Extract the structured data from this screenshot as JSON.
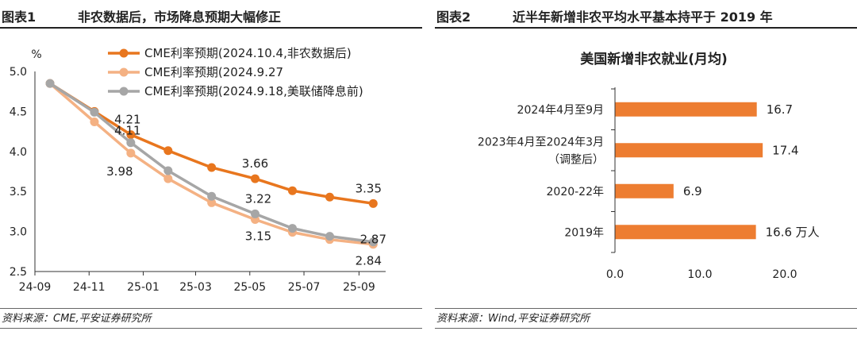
{
  "figure1": {
    "fig_label": "图表1",
    "title": "非农数据后，市场降息预期大幅修正",
    "source": "资料来源：CME,平安证券研究所",
    "chart_data": {
      "type": "line",
      "ylabel": "%",
      "ylim": [
        2.5,
        5.0
      ],
      "yticks": [
        "5.0",
        "4.5",
        "4.0",
        "3.5",
        "3.0",
        "2.5"
      ],
      "x_ticks": [
        "24-09",
        "24-11",
        "25-01",
        "25-03",
        "25-05",
        "25-07",
        "25-09"
      ],
      "x_range": [
        "2024-09",
        "2025-10"
      ],
      "grid": false,
      "legend_position": "top-right",
      "series": [
        {
          "name": "CME利率预期(2024.10.4,非农数据后)",
          "color": "#e8761e",
          "x": [
            "2024-09-18",
            "2024-11-07",
            "2024-12-18",
            "2025-01-29",
            "2025-03-19",
            "2025-05-07",
            "2025-06-18",
            "2025-07-30",
            "2025-09-17"
          ],
          "values": [
            4.85,
            4.5,
            4.21,
            4.01,
            3.8,
            3.66,
            3.51,
            3.43,
            3.35
          ],
          "labels": [
            "",
            "",
            "4.21",
            "",
            "",
            "3.66",
            "",
            "",
            "3.35"
          ]
        },
        {
          "name": "CME利率预期(2024.9.27",
          "color": "#f4b183",
          "x": [
            "2024-09-18",
            "2024-11-07",
            "2024-12-18",
            "2025-01-29",
            "2025-03-19",
            "2025-05-07",
            "2025-06-18",
            "2025-07-30",
            "2025-09-17"
          ],
          "values": [
            4.85,
            4.37,
            3.98,
            3.66,
            3.36,
            3.15,
            2.99,
            2.9,
            2.84
          ],
          "labels": [
            "",
            "",
            "3.98",
            "",
            "",
            "3.15",
            "",
            "",
            "2.84"
          ]
        },
        {
          "name": "CME利率预期(2024.9.18,美联储降息前)",
          "color": "#a6a6a6",
          "x": [
            "2024-09-18",
            "2024-11-07",
            "2024-12-18",
            "2025-01-29",
            "2025-03-19",
            "2025-05-07",
            "2025-06-18",
            "2025-07-30",
            "2025-09-17"
          ],
          "values": [
            4.85,
            4.49,
            4.11,
            3.76,
            3.44,
            3.22,
            3.04,
            2.94,
            2.87
          ],
          "labels": [
            "",
            "",
            "4.11",
            "",
            "",
            "3.22",
            "",
            "",
            "2.87"
          ]
        }
      ]
    }
  },
  "figure2": {
    "fig_label": "图表2",
    "title": "近半年新增非农平均水平基本持平于 2019 年",
    "source": "资料来源：Wind,平安证券研究所",
    "chart_data": {
      "type": "bar",
      "orientation": "horizontal",
      "title": "美国新增非农就业(月均)",
      "categories": [
        [
          "2024年4月至9月"
        ],
        [
          "2023年4月至2024年3月",
          "（调整后）"
        ],
        [
          "2020-22年"
        ],
        [
          "2019年"
        ]
      ],
      "values": [
        16.7,
        17.4,
        6.9,
        16.6
      ],
      "value_labels": [
        "16.7",
        "17.4",
        "6.9",
        "16.6"
      ],
      "unit_note": "万人",
      "xlim": [
        0,
        20
      ],
      "xticks": [
        "0.0",
        "10.0",
        "20.0"
      ],
      "bar_color": "#ed7d31"
    }
  }
}
